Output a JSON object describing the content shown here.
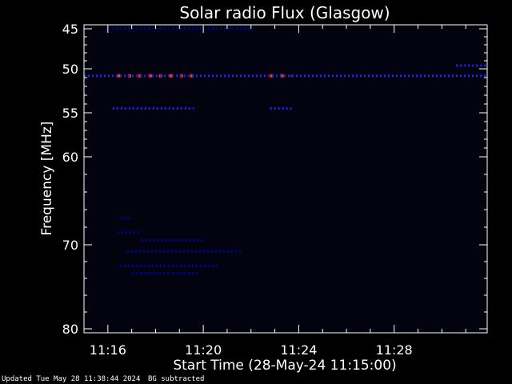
{
  "chart_data": {
    "type": "heatmap",
    "title": "Solar radio Flux (Glasgow)",
    "xlabel": "Start Time (28-May-24 11:15:00)",
    "ylabel": "Frequency [MHz]",
    "xlim_minutes_after_11_00": [
      15.0,
      31.9
    ],
    "ylim_mhz": [
      45,
      80
    ],
    "y_inverted": true,
    "y_scale": "nonlinear",
    "x_ticks": [
      {
        "label": "11:16",
        "minute": 16
      },
      {
        "label": "11:20",
        "minute": 20
      },
      {
        "label": "11:24",
        "minute": 24
      },
      {
        "label": "11:28",
        "minute": 28
      }
    ],
    "y_ticks": [
      {
        "label": "45",
        "value": 45
      },
      {
        "label": "50",
        "value": 50
      },
      {
        "label": "55",
        "value": 55
      },
      {
        "label": "60",
        "value": 60
      },
      {
        "label": "70",
        "value": 70
      },
      {
        "label": "80",
        "value": 80
      }
    ],
    "colors": {
      "background": "#000000",
      "axes": "#ffffff",
      "plot_background": "#03030f",
      "low_intensity": "#0000aa",
      "medium_intensity": "#2020ff",
      "high_intensity": "#ff3a00"
    },
    "features": [
      {
        "name": "strong-line",
        "freq_mhz": 50.8,
        "t_start": 16.4,
        "t_end": 19.6,
        "intensity": "high"
      },
      {
        "name": "strong-line",
        "freq_mhz": 50.8,
        "t_start": 22.8,
        "t_end": 23.7,
        "intensity": "high"
      },
      {
        "name": "line",
        "freq_mhz": 50.8,
        "t_start": 15.0,
        "t_end": 31.9,
        "intensity": "medium"
      },
      {
        "name": "line",
        "freq_mhz": 54.5,
        "t_start": 16.2,
        "t_end": 19.6,
        "intensity": "medium"
      },
      {
        "name": "line",
        "freq_mhz": 54.5,
        "t_start": 22.8,
        "t_end": 23.7,
        "intensity": "medium"
      },
      {
        "name": "line",
        "freq_mhz": 49.6,
        "t_start": 30.6,
        "t_end": 31.9,
        "intensity": "medium"
      },
      {
        "name": "line",
        "freq_mhz": 45.0,
        "t_start": 16.0,
        "t_end": 22.0,
        "intensity": "low"
      },
      {
        "name": "cluster",
        "freq_mhz": 67.0,
        "t_start": 16.5,
        "t_end": 17.0,
        "intensity": "low"
      },
      {
        "name": "cluster",
        "freq_mhz": 68.6,
        "t_start": 16.4,
        "t_end": 17.4,
        "intensity": "low"
      },
      {
        "name": "cluster",
        "freq_mhz": 69.5,
        "t_start": 17.4,
        "t_end": 20.0,
        "intensity": "low"
      },
      {
        "name": "cluster",
        "freq_mhz": 70.8,
        "t_start": 16.8,
        "t_end": 21.6,
        "intensity": "low"
      },
      {
        "name": "cluster",
        "freq_mhz": 72.5,
        "t_start": 16.5,
        "t_end": 20.6,
        "intensity": "low"
      },
      {
        "name": "cluster",
        "freq_mhz": 73.4,
        "t_start": 17.0,
        "t_end": 19.8,
        "intensity": "low"
      }
    ]
  },
  "footer": {
    "updated": "Updated Tue May 28 11:38:44 2024",
    "bg_note": "BG subtracted"
  }
}
